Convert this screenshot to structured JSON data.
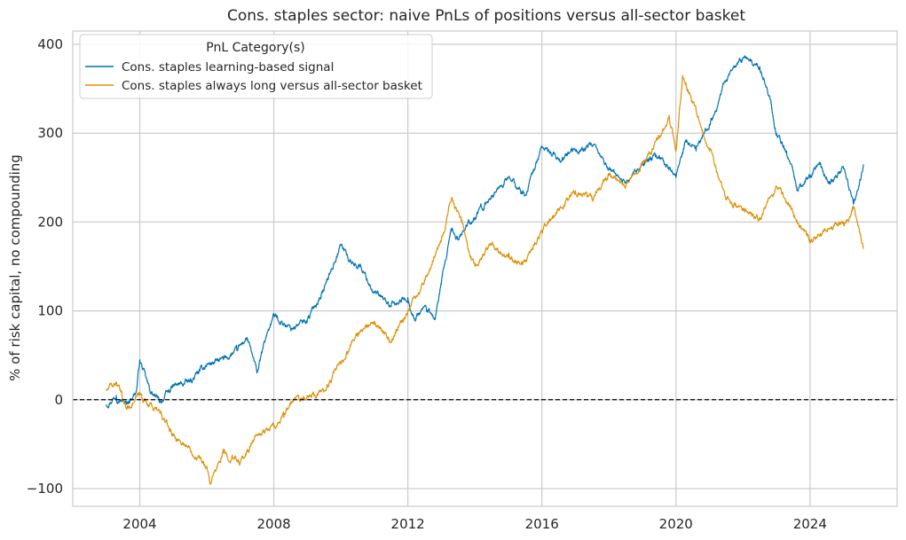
{
  "chart_data": {
    "type": "line",
    "title": "Cons. staples sector: naive PnLs of positions versus all-sector basket",
    "xlabel": "",
    "ylabel": "% of risk capital, no compounding",
    "xlim": [
      2002.0,
      2026.6
    ],
    "ylim": [
      -120,
      415
    ],
    "x_ticks": [
      2004,
      2008,
      2012,
      2016,
      2020,
      2024
    ],
    "x_tick_labels": [
      "2004",
      "2008",
      "2012",
      "2016",
      "2020",
      "2024"
    ],
    "y_ticks": [
      -100,
      0,
      100,
      200,
      300,
      400
    ],
    "y_tick_labels": [
      "−100",
      "0",
      "100",
      "200",
      "300",
      "400"
    ],
    "grid": true,
    "reference_line": {
      "y": 0,
      "style": "dashed",
      "color": "#000000"
    },
    "legend": {
      "title": "PnL Category(s)",
      "placement": "top-left"
    },
    "series": [
      {
        "name": "Cons. staples learning-based signal",
        "color": "#0173b2",
        "x": [
          2003.0,
          2003.3,
          2003.6,
          2003.9,
          2004.0,
          2004.3,
          2004.6,
          2005.0,
          2005.5,
          2006.0,
          2006.5,
          2006.9,
          2007.2,
          2007.5,
          2007.8,
          2008.0,
          2008.5,
          2009.0,
          2009.5,
          2010.0,
          2010.3,
          2010.6,
          2011.0,
          2011.5,
          2012.0,
          2012.2,
          2012.5,
          2012.8,
          2013.0,
          2013.3,
          2013.5,
          2013.8,
          2014.0,
          2014.5,
          2015.0,
          2015.5,
          2016.0,
          2016.5,
          2017.0,
          2017.5,
          2018.0,
          2018.5,
          2019.0,
          2019.5,
          2020.0,
          2020.3,
          2020.6,
          2021.0,
          2021.5,
          2022.0,
          2022.5,
          2022.8,
          2023.0,
          2023.3,
          2023.6,
          2024.0,
          2024.3,
          2024.6,
          2025.0,
          2025.3,
          2025.6
        ],
        "values": [
          -5,
          5,
          -5,
          10,
          45,
          10,
          -3,
          15,
          20,
          40,
          45,
          55,
          70,
          30,
          75,
          95,
          80,
          90,
          125,
          175,
          155,
          150,
          120,
          105,
          115,
          90,
          105,
          90,
          130,
          190,
          180,
          200,
          205,
          230,
          250,
          230,
          285,
          270,
          280,
          285,
          260,
          245,
          265,
          275,
          250,
          290,
          280,
          310,
          360,
          385,
          375,
          340,
          300,
          280,
          240,
          250,
          265,
          245,
          260,
          220,
          265
        ]
      },
      {
        "name": "Cons. staples always long versus all-sector basket",
        "color": "#de8f05",
        "x": [
          2003.0,
          2003.3,
          2003.6,
          2004.0,
          2004.3,
          2004.6,
          2005.0,
          2005.5,
          2006.0,
          2006.1,
          2006.5,
          2007.0,
          2007.5,
          2008.0,
          2008.3,
          2008.6,
          2009.0,
          2009.5,
          2010.0,
          2010.5,
          2011.0,
          2011.5,
          2012.0,
          2012.5,
          2013.0,
          2013.3,
          2013.6,
          2013.8,
          2014.0,
          2014.5,
          2015.0,
          2015.5,
          2016.0,
          2016.5,
          2017.0,
          2017.5,
          2018.0,
          2018.5,
          2019.0,
          2019.5,
          2019.8,
          2020.0,
          2020.2,
          2020.5,
          2021.0,
          2021.5,
          2022.0,
          2022.5,
          2023.0,
          2023.5,
          2024.0,
          2024.5,
          2025.0,
          2025.3,
          2025.6
        ],
        "values": [
          10,
          20,
          -10,
          5,
          -5,
          -15,
          -40,
          -55,
          -75,
          -95,
          -60,
          -70,
          -40,
          -30,
          -20,
          0,
          5,
          10,
          40,
          75,
          85,
          65,
          100,
          135,
          180,
          225,
          200,
          170,
          150,
          175,
          160,
          155,
          190,
          215,
          235,
          225,
          255,
          240,
          265,
          295,
          320,
          280,
          365,
          335,
          280,
          225,
          215,
          205,
          240,
          210,
          180,
          190,
          200,
          215,
          170
        ]
      }
    ]
  }
}
